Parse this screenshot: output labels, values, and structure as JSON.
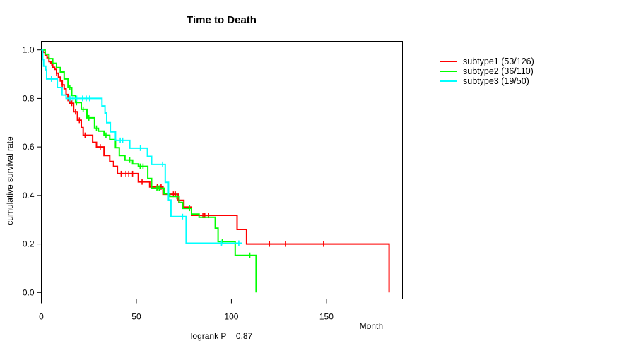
{
  "title": "Time to Death",
  "axes": {
    "x": {
      "label": "Month",
      "tick_values": [
        0,
        50,
        100,
        150
      ],
      "tick_labels": [
        "0",
        "50",
        "100",
        "150"
      ]
    },
    "y": {
      "label": "cumulative survival rate",
      "tick_values": [
        0,
        0.2,
        0.4,
        0.6,
        0.8,
        1
      ],
      "tick_labels": [
        "0.0",
        "0.2",
        "0.4",
        "0.6",
        "0.8",
        "1.0"
      ]
    }
  },
  "footer": {
    "logrank_label": "logrank P = 0.87"
  },
  "legend": [
    {
      "label": "subtype1 (53/126)",
      "color": "#ff0000"
    },
    {
      "label": "subtype2 (36/110)",
      "color": "#00ff00"
    },
    {
      "label": "subtype3 (19/50)",
      "color": "#00ffff"
    }
  ],
  "chart_data": {
    "type": "line",
    "variant": "kaplan-meier-step",
    "title": "Time to Death",
    "xlabel": "Month",
    "ylabel": "cumulative survival rate",
    "xlim": [
      0,
      190
    ],
    "ylim": [
      0,
      1
    ],
    "x_ticks": [
      0,
      50,
      100,
      150
    ],
    "y_ticks": [
      0,
      0.2,
      0.4,
      0.6,
      0.8,
      1
    ],
    "grid": false,
    "legend_position": "right-outside",
    "annotation": "logrank P = 0.87",
    "series": [
      {
        "name": "subtype1 (53/126)",
        "color": "#ff0000",
        "steps": [
          [
            0,
            1.0
          ],
          [
            1,
            0.99
          ],
          [
            2,
            0.976
          ],
          [
            3,
            0.968
          ],
          [
            4,
            0.952
          ],
          [
            5,
            0.944
          ],
          [
            6,
            0.928
          ],
          [
            7,
            0.92
          ],
          [
            8,
            0.904
          ],
          [
            9,
            0.888
          ],
          [
            10,
            0.872
          ],
          [
            11,
            0.856
          ],
          [
            12,
            0.84
          ],
          [
            13,
            0.816
          ],
          [
            14,
            0.8
          ],
          [
            15,
            0.78
          ],
          [
            17,
            0.745
          ],
          [
            19,
            0.71
          ],
          [
            21,
            0.68
          ],
          [
            22,
            0.648
          ],
          [
            27,
            0.619
          ],
          [
            29,
            0.6
          ],
          [
            33,
            0.565
          ],
          [
            36,
            0.54
          ],
          [
            38,
            0.52
          ],
          [
            40,
            0.49
          ],
          [
            51,
            0.456
          ],
          [
            57,
            0.435
          ],
          [
            64,
            0.405
          ],
          [
            72,
            0.38
          ],
          [
            75,
            0.352
          ],
          [
            79,
            0.318
          ],
          [
            103,
            0.26
          ],
          [
            108,
            0.2
          ],
          [
            183,
            0.0
          ]
        ],
        "censor_ticks": [
          5.5,
          8,
          11,
          14,
          16,
          18,
          20,
          23,
          31,
          42,
          44.5,
          46,
          48,
          53,
          61,
          63,
          69.5,
          70.5,
          72.3,
          85,
          86,
          88,
          120,
          128.5,
          148.5
        ]
      },
      {
        "name": "subtype2 (36/110)",
        "color": "#00ff00",
        "steps": [
          [
            0,
            1.0
          ],
          [
            2,
            0.982
          ],
          [
            4,
            0.964
          ],
          [
            6,
            0.945
          ],
          [
            8,
            0.927
          ],
          [
            10,
            0.909
          ],
          [
            12,
            0.88
          ],
          [
            14,
            0.845
          ],
          [
            16,
            0.812
          ],
          [
            18,
            0.783
          ],
          [
            21,
            0.755
          ],
          [
            24,
            0.72
          ],
          [
            28,
            0.677
          ],
          [
            30,
            0.665
          ],
          [
            33,
            0.648
          ],
          [
            36,
            0.63
          ],
          [
            39,
            0.597
          ],
          [
            41,
            0.565
          ],
          [
            44,
            0.546
          ],
          [
            48,
            0.53
          ],
          [
            51,
            0.52
          ],
          [
            56,
            0.47
          ],
          [
            58,
            0.43
          ],
          [
            64.5,
            0.407
          ],
          [
            67.6,
            0.396
          ],
          [
            72.5,
            0.371
          ],
          [
            74.4,
            0.347
          ],
          [
            79,
            0.323
          ],
          [
            83,
            0.31
          ],
          [
            91.5,
            0.265
          ],
          [
            93,
            0.21
          ],
          [
            102,
            0.153
          ],
          [
            113,
            0.0
          ]
        ],
        "censor_ticks": [
          15,
          18.5,
          22,
          25,
          29,
          34,
          46.5,
          52,
          53.5,
          60.8,
          62,
          71.3,
          78,
          95.2,
          109.7
        ]
      },
      {
        "name": "subtype3 (19/50)",
        "color": "#00ffff",
        "steps": [
          [
            0,
            1.0
          ],
          [
            0.7,
            0.96
          ],
          [
            1.2,
            0.933
          ],
          [
            2.3,
            0.918
          ],
          [
            2.8,
            0.88
          ],
          [
            8.4,
            0.845
          ],
          [
            10.9,
            0.814
          ],
          [
            13,
            0.8
          ],
          [
            31.9,
            0.769
          ],
          [
            33.5,
            0.74
          ],
          [
            34.4,
            0.7
          ],
          [
            36.3,
            0.662
          ],
          [
            39,
            0.627
          ],
          [
            46.5,
            0.595
          ],
          [
            55.8,
            0.561
          ],
          [
            58,
            0.528
          ],
          [
            65.2,
            0.454
          ],
          [
            66.9,
            0.381
          ],
          [
            68.2,
            0.313
          ],
          [
            76.2,
            0.203
          ],
          [
            105.5,
            0.203
          ]
        ],
        "censor_ticks": [
          5.3,
          15,
          16.7,
          18.6,
          21.7,
          23.6,
          25.4,
          41.5,
          42.8,
          52.1,
          63.8,
          74.3,
          94.8,
          103.9
        ]
      }
    ]
  }
}
